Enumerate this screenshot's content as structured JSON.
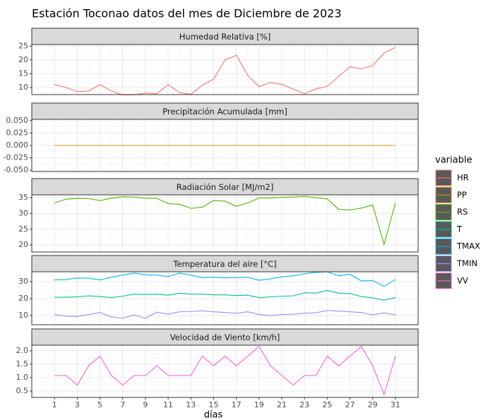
{
  "title": "Estación Toconao datos del mes de Diciembre de 2023",
  "xlabel": "días",
  "legend_title": "variable",
  "chart_data": [
    {
      "type": "line",
      "title": "Humedad Relativa [%]",
      "x": [
        1,
        2,
        3,
        4,
        5,
        6,
        7,
        8,
        9,
        10,
        11,
        12,
        13,
        14,
        15,
        16,
        17,
        18,
        19,
        20,
        21,
        22,
        23,
        24,
        25,
        26,
        27,
        28,
        29,
        30,
        31
      ],
      "xlim": [
        -1,
        33
      ],
      "xticks": [
        1,
        3,
        5,
        7,
        9,
        11,
        13,
        15,
        17,
        19,
        21,
        23,
        25,
        27,
        29,
        31
      ],
      "ylim": [
        7.4,
        25.6
      ],
      "yticks": [
        10,
        15,
        20,
        25
      ],
      "grid": true,
      "series": [
        {
          "name": "HR",
          "color": "#F8766D",
          "values": [
            11,
            10,
            8.5,
            8.7,
            11,
            8.7,
            7.3,
            7.3,
            8,
            7.7,
            11,
            8.1,
            7.5,
            10.8,
            13,
            20,
            21.7,
            14.4,
            10.3,
            11.8,
            11.1,
            9.4,
            7.7,
            9.5,
            10.4,
            14,
            17.5,
            16.7,
            18,
            22.5,
            24.5
          ]
        }
      ]
    },
    {
      "type": "line",
      "title": "Precipitación Acumulada [mm]",
      "x": [
        1,
        2,
        3,
        4,
        5,
        6,
        7,
        8,
        9,
        10,
        11,
        12,
        13,
        14,
        15,
        16,
        17,
        18,
        19,
        20,
        21,
        22,
        23,
        24,
        25,
        26,
        27,
        28,
        29,
        30,
        31
      ],
      "xlim": [
        -1,
        33
      ],
      "xticks": [
        1,
        3,
        5,
        7,
        9,
        11,
        13,
        15,
        17,
        19,
        21,
        23,
        25,
        27,
        29,
        31
      ],
      "ylim": [
        -0.0525,
        0.0525
      ],
      "yticks": [
        {
          "value": 0.05,
          "label": "0.050"
        },
        {
          "value": 0.025,
          "label": "0.025"
        },
        {
          "value": 0,
          "label": "0.000"
        },
        {
          "value": -0.025,
          "label": "-0.025"
        },
        {
          "value": -0.05,
          "label": "-0.050"
        }
      ],
      "grid": true,
      "series": [
        {
          "name": "PP",
          "color": "#C49A00",
          "values": [
            0,
            0,
            0,
            0,
            0,
            0,
            0,
            0,
            0,
            0,
            0,
            0,
            0,
            0,
            0,
            0,
            0,
            0,
            0,
            0,
            0,
            0,
            0,
            0,
            0,
            0,
            0,
            0,
            0,
            0,
            0
          ]
        }
      ]
    },
    {
      "type": "line",
      "title": "Radiación Solar [MJ/m2]",
      "x": [
        1,
        2,
        3,
        4,
        5,
        6,
        7,
        8,
        9,
        10,
        11,
        12,
        13,
        14,
        15,
        16,
        17,
        18,
        19,
        20,
        21,
        22,
        23,
        24,
        25,
        26,
        27,
        28,
        29,
        30,
        31
      ],
      "xlim": [
        -1,
        33
      ],
      "xticks": [
        1,
        3,
        5,
        7,
        9,
        11,
        13,
        15,
        17,
        19,
        21,
        23,
        25,
        27,
        29,
        31
      ],
      "ylim": [
        17.8,
        35.9
      ],
      "yticks": [
        20,
        25,
        30,
        35
      ],
      "grid": true,
      "series": [
        {
          "name": "RS",
          "color": "#53B400",
          "values": [
            33.3,
            34.5,
            34.8,
            34.7,
            34.1,
            34.8,
            35.3,
            35.2,
            34.8,
            34.8,
            33.1,
            32.9,
            31.6,
            32.0,
            34.1,
            33.9,
            32.3,
            33.3,
            34.9,
            34.9,
            35.1,
            35.2,
            35.4,
            35.0,
            34.6,
            31.3,
            31.1,
            31.7,
            32.7,
            20.2,
            33.3
          ]
        }
      ]
    },
    {
      "type": "line",
      "title": "Temperatura del aire [°C]",
      "x": [
        1,
        2,
        3,
        4,
        5,
        6,
        7,
        8,
        9,
        10,
        11,
        12,
        13,
        14,
        15,
        16,
        17,
        18,
        19,
        20,
        21,
        22,
        23,
        24,
        25,
        26,
        27,
        28,
        29,
        30,
        31
      ],
      "xlim": [
        -1,
        33
      ],
      "xticks": [
        1,
        3,
        5,
        7,
        9,
        11,
        13,
        15,
        17,
        19,
        21,
        23,
        25,
        27,
        29,
        31
      ],
      "ylim": [
        4.6,
        35.8
      ],
      "yticks": [
        10,
        20,
        30
      ],
      "grid": true,
      "series": [
        {
          "name": "T",
          "color": "#00C094",
          "values": [
            20.8,
            20.8,
            21,
            21.6,
            21.2,
            20.6,
            21.4,
            22.6,
            22.4,
            22.6,
            22,
            23.2,
            22.6,
            22.6,
            22.2,
            22.2,
            21.8,
            22,
            20.6,
            21,
            21.4,
            21.6,
            23.4,
            23.2,
            24.8,
            23.2,
            23,
            21.2,
            20.4,
            19,
            20.6
          ]
        },
        {
          "name": "TMAX",
          "color": "#00B6EB",
          "values": [
            31,
            31.2,
            32.2,
            32,
            31,
            32.6,
            33.8,
            35,
            34,
            33.8,
            33,
            35,
            33.8,
            32.4,
            32.6,
            32.2,
            32.4,
            32.6,
            30.8,
            31.6,
            32.8,
            33.4,
            34.6,
            35.4,
            35.8,
            33.4,
            34.4,
            30.4,
            30.6,
            27.2,
            31.2
          ]
        },
        {
          "name": "TMIN",
          "color": "#A58AFF",
          "values": [
            10.6,
            9.6,
            9.4,
            10.6,
            11.8,
            9.2,
            8.4,
            10.4,
            8.4,
            12,
            10.8,
            12.2,
            12.4,
            12.8,
            12.2,
            11.8,
            11.4,
            12.2,
            10.6,
            10,
            10.6,
            10.8,
            11.4,
            11.6,
            13,
            12.6,
            12.2,
            11.8,
            10.4,
            11.6,
            10.4
          ]
        }
      ]
    },
    {
      "type": "line",
      "title": "Velocidad de Viento [km/h]",
      "x": [
        1,
        2,
        3,
        4,
        5,
        6,
        7,
        8,
        9,
        10,
        11,
        12,
        13,
        14,
        15,
        16,
        17,
        18,
        19,
        20,
        21,
        22,
        23,
        24,
        25,
        26,
        27,
        28,
        29,
        30,
        31
      ],
      "xlim": [
        -1,
        33
      ],
      "xticks": [
        1,
        3,
        5,
        7,
        9,
        11,
        13,
        15,
        17,
        19,
        21,
        23,
        25,
        27,
        29,
        31
      ],
      "ylim": [
        0.26,
        2.21
      ],
      "yticks": [
        {
          "value": 2,
          "label": "2.0"
        },
        1.5,
        {
          "value": 1,
          "label": "1.0"
        },
        0.5
      ],
      "grid": true,
      "series": [
        {
          "name": "VV",
          "color": "#FB61D7",
          "values": [
            1.08,
            1.08,
            0.72,
            1.44,
            1.8,
            1.08,
            0.72,
            1.08,
            1.08,
            1.44,
            1.08,
            1.08,
            1.08,
            1.8,
            1.44,
            1.8,
            1.44,
            1.8,
            2.16,
            1.44,
            1.08,
            0.72,
            1.08,
            1.08,
            1.8,
            1.44,
            1.8,
            2.16,
            1.44,
            0.36,
            1.8
          ]
        }
      ]
    }
  ]
}
